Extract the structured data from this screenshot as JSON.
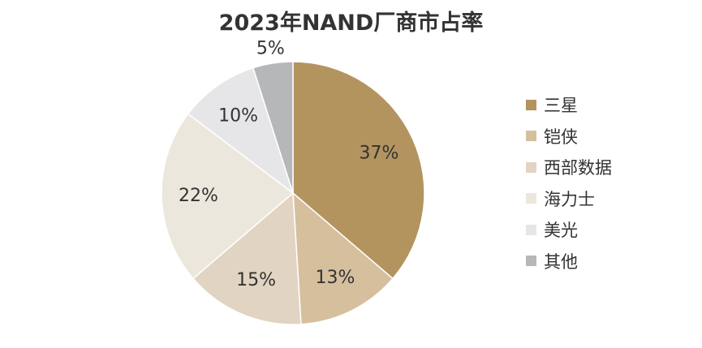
{
  "chart_data": {
    "type": "pie",
    "title": "2023年NAND厂商市占率",
    "slices": [
      {
        "label": "三星",
        "value": 37,
        "value_label": "37%",
        "color": "#b3945f"
      },
      {
        "label": "铠侠",
        "value": 13,
        "value_label": "13%",
        "color": "#d5bf9d"
      },
      {
        "label": "西部数据",
        "value": 15,
        "value_label": "15%",
        "color": "#e1d4c2"
      },
      {
        "label": "海力士",
        "value": 22,
        "value_label": "22%",
        "color": "#ece7dc"
      },
      {
        "label": "美光",
        "value": 10,
        "value_label": "10%",
        "color": "#e6e6e8"
      },
      {
        "label": "其他",
        "value": 5,
        "value_label": "5%",
        "color": "#b6b7b9"
      }
    ],
    "legend_position": "right"
  }
}
